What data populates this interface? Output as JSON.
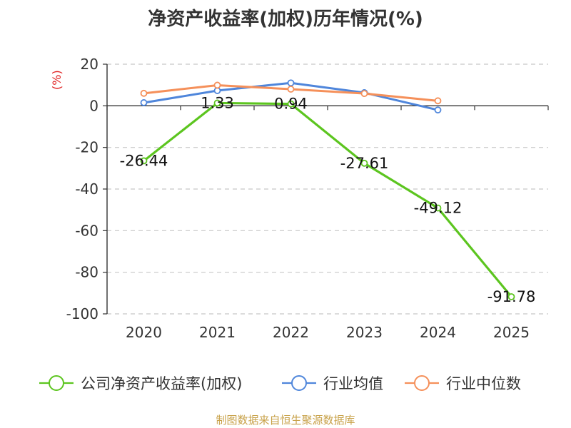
{
  "chart_data": {
    "type": "line",
    "title": "净资产收益率(加权)历年情况(%)",
    "ylabel": "(%)",
    "categories": [
      "2020",
      "2021",
      "2022",
      "2023",
      "2024",
      "2025"
    ],
    "ylim": [
      -100,
      20
    ],
    "yticks": [
      20,
      0,
      -20,
      -40,
      -60,
      -80,
      -100
    ],
    "grid": true,
    "legend_position": "bottom",
    "series": [
      {
        "name": "公司净资产收益率(加权)",
        "color": "#5cc51f",
        "values": [
          -26.44,
          1.33,
          0.94,
          -27.61,
          -49.12,
          -91.78
        ],
        "labels": [
          "-26.44",
          "1.33",
          "0.94",
          "-27.61",
          "-49.12",
          "-91.78"
        ]
      },
      {
        "name": "行业均值",
        "color": "#4f86db",
        "values": [
          1.5,
          7.3,
          11.0,
          6.3,
          -2.0,
          null
        ]
      },
      {
        "name": "行业中位数",
        "color": "#f5905a",
        "values": [
          6.0,
          9.9,
          8.0,
          5.9,
          2.4,
          null
        ]
      }
    ]
  },
  "source": "制图数据来自恒生聚源数据库"
}
